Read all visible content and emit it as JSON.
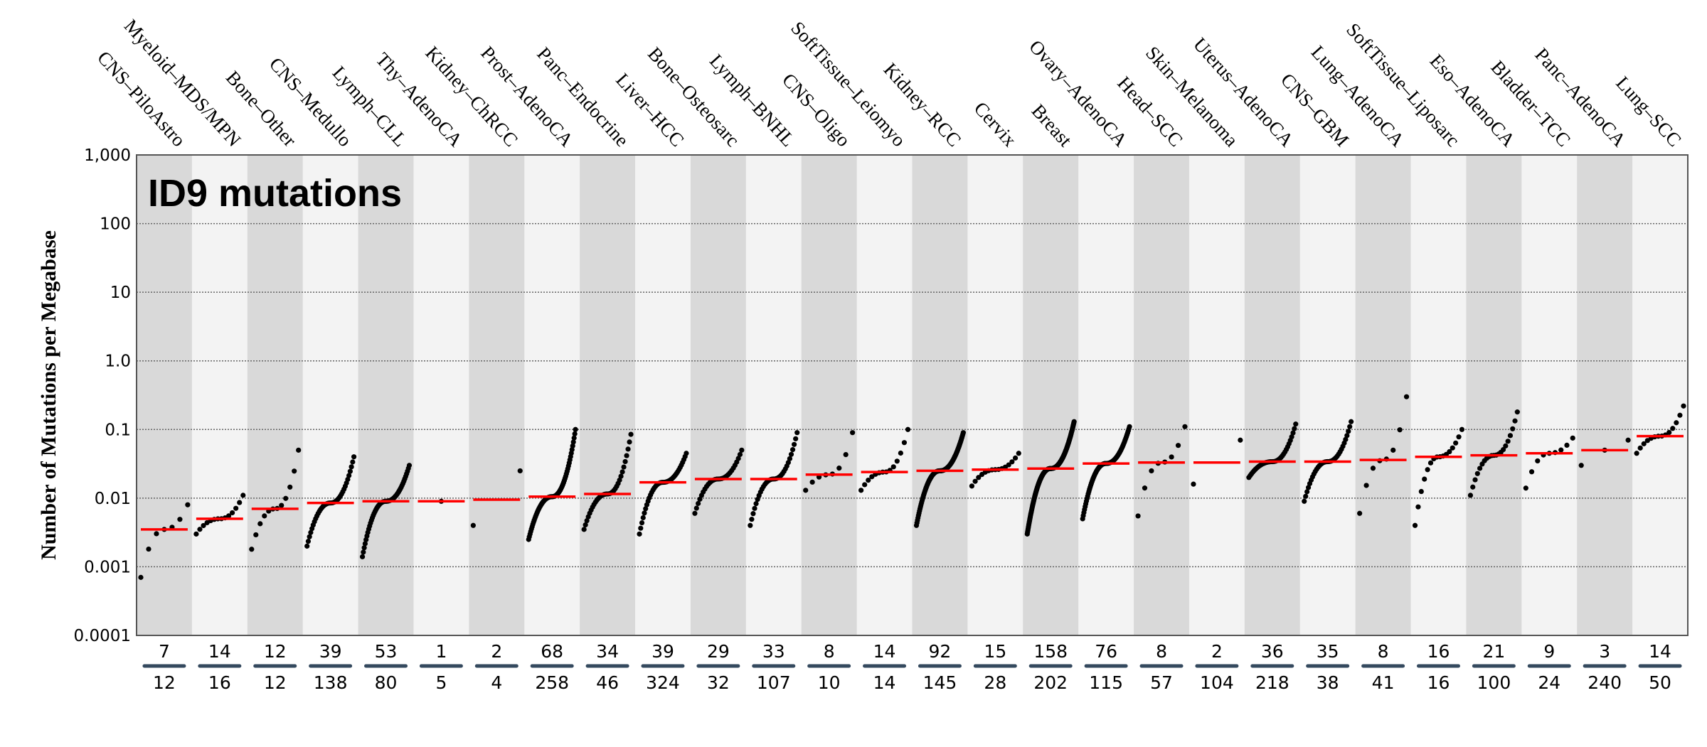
{
  "chart_data": {
    "type": "scatter",
    "title": "ID9 mutations",
    "ylabel": "Number of Mutations per Megabase",
    "xlabel": "",
    "yscale": "log",
    "ylim": [
      0.0001,
      1000
    ],
    "yticks": [
      "0.0001",
      "0.001",
      "0.01",
      "0.1",
      "1.0",
      "10",
      "100",
      "1,000"
    ],
    "grid": "horizontal dotted",
    "colors": {
      "band_dark": "#d9d9d9",
      "band_light": "#f3f3f3",
      "median": "#ff0000",
      "point": "#000000",
      "divider": "#34495e"
    },
    "groups": [
      {
        "name": "CNS–PiloAstro",
        "samples_with": 7,
        "total": 12,
        "median": 0.0035,
        "min": 0.0007,
        "max": 0.008
      },
      {
        "name": "Myeloid–MDS/MPN",
        "samples_with": 14,
        "total": 16,
        "median": 0.005,
        "min": 0.003,
        "max": 0.011
      },
      {
        "name": "Bone–Other",
        "samples_with": 12,
        "total": 12,
        "median": 0.007,
        "min": 0.0018,
        "max": 0.05
      },
      {
        "name": "CNS–Medullo",
        "samples_with": 39,
        "total": 138,
        "median": 0.0085,
        "min": 0.002,
        "max": 0.04
      },
      {
        "name": "Lymph–CLL",
        "samples_with": 53,
        "total": 80,
        "median": 0.009,
        "min": 0.0014,
        "max": 0.03
      },
      {
        "name": "Thy–AdenoCA",
        "samples_with": 1,
        "total": 5,
        "median": 0.009,
        "min": 0.009,
        "max": 0.009
      },
      {
        "name": "Kidney–ChRCC",
        "samples_with": 2,
        "total": 4,
        "median": 0.0095,
        "min": 0.004,
        "max": 0.025
      },
      {
        "name": "Prost–AdenoCA",
        "samples_with": 68,
        "total": 258,
        "median": 0.0105,
        "min": 0.0025,
        "max": 0.1
      },
      {
        "name": "Panc–Endocrine",
        "samples_with": 34,
        "total": 46,
        "median": 0.0115,
        "min": 0.0035,
        "max": 0.085
      },
      {
        "name": "Liver–HCC",
        "samples_with": 39,
        "total": 324,
        "median": 0.017,
        "min": 0.003,
        "max": 0.045
      },
      {
        "name": "Bone–Osteosarc",
        "samples_with": 29,
        "total": 32,
        "median": 0.019,
        "min": 0.006,
        "max": 0.05
      },
      {
        "name": "Lymph–BNHL",
        "samples_with": 33,
        "total": 107,
        "median": 0.019,
        "min": 0.004,
        "max": 0.09
      },
      {
        "name": "CNS–Oligo",
        "samples_with": 8,
        "total": 10,
        "median": 0.022,
        "min": 0.013,
        "max": 0.09
      },
      {
        "name": "SoftTissue–Leiomyo",
        "samples_with": 14,
        "total": 14,
        "median": 0.024,
        "min": 0.013,
        "max": 0.1
      },
      {
        "name": "Kidney–RCC",
        "samples_with": 92,
        "total": 145,
        "median": 0.025,
        "min": 0.004,
        "max": 0.09
      },
      {
        "name": "Cervix",
        "samples_with": 15,
        "total": 28,
        "median": 0.026,
        "min": 0.015,
        "max": 0.045
      },
      {
        "name": "Breast",
        "samples_with": 158,
        "total": 202,
        "median": 0.027,
        "min": 0.003,
        "max": 0.13
      },
      {
        "name": "Ovary–AdenoCA",
        "samples_with": 76,
        "total": 115,
        "median": 0.032,
        "min": 0.005,
        "max": 0.11
      },
      {
        "name": "Head–SCC",
        "samples_with": 8,
        "total": 57,
        "median": 0.033,
        "min": 0.0055,
        "max": 0.11
      },
      {
        "name": "Skin–Melanoma",
        "samples_with": 2,
        "total": 104,
        "median": 0.033,
        "min": 0.016,
        "max": 0.07
      },
      {
        "name": "Uterus–AdenoCA",
        "samples_with": 36,
        "total": 218,
        "median": 0.034,
        "min": 0.02,
        "max": 0.12
      },
      {
        "name": "CNS–GBM",
        "samples_with": 35,
        "total": 38,
        "median": 0.034,
        "min": 0.009,
        "max": 0.13
      },
      {
        "name": "Lung–AdenoCA",
        "samples_with": 8,
        "total": 41,
        "median": 0.036,
        "min": 0.006,
        "max": 0.3
      },
      {
        "name": "SoftTissue–Liposarc",
        "samples_with": 16,
        "total": 16,
        "median": 0.04,
        "min": 0.004,
        "max": 0.1
      },
      {
        "name": "Eso–AdenoCA",
        "samples_with": 21,
        "total": 100,
        "median": 0.042,
        "min": 0.011,
        "max": 0.18
      },
      {
        "name": "Bladder–TCC",
        "samples_with": 9,
        "total": 24,
        "median": 0.045,
        "min": 0.014,
        "max": 0.075
      },
      {
        "name": "Panc–AdenoCA",
        "samples_with": 3,
        "total": 240,
        "median": 0.05,
        "min": 0.03,
        "max": 0.07
      },
      {
        "name": "Lung–SCC",
        "samples_with": 14,
        "total": 50,
        "median": 0.08,
        "min": 0.045,
        "max": 0.22
      }
    ]
  }
}
